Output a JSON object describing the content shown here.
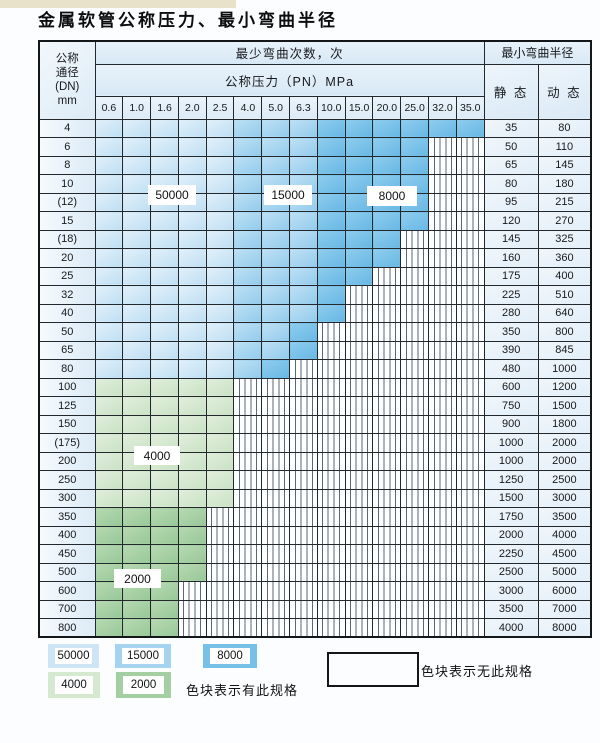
{
  "page": {
    "title": "金属软管公称压力、最小弯曲半径"
  },
  "table": {
    "dn_header_lines": [
      "公称",
      "通径",
      "(DN)",
      "mm"
    ],
    "cycles_header": "最少弯曲次数，次",
    "pressure_header": "公称压力（PN）MPa",
    "radius_header": "最小弯曲半径",
    "static_header": "静 态",
    "dynamic_header": "动 态",
    "pressure_columns": [
      "0.6",
      "1.0",
      "1.6",
      "2.0",
      "2.5",
      "4.0",
      "5.0",
      "6.3",
      "10.0",
      "15.0",
      "20.0",
      "25.0",
      "32.0",
      "35.0"
    ],
    "rows": [
      {
        "dn": "4",
        "static": "35",
        "dynamic": "80",
        "fill": "blue",
        "light_end": 4,
        "mid_end": 7,
        "end": 13
      },
      {
        "dn": "6",
        "static": "50",
        "dynamic": "110",
        "fill": "blue",
        "light_end": 4,
        "mid_end": 7,
        "end": 11
      },
      {
        "dn": "8",
        "static": "65",
        "dynamic": "145",
        "fill": "blue",
        "light_end": 4,
        "mid_end": 7,
        "end": 11
      },
      {
        "dn": "10",
        "static": "80",
        "dynamic": "180",
        "fill": "blue",
        "light_end": 4,
        "mid_end": 7,
        "end": 11
      },
      {
        "dn": "(12)",
        "static": "95",
        "dynamic": "215",
        "fill": "blue",
        "light_end": 4,
        "mid_end": 7,
        "end": 11
      },
      {
        "dn": "15",
        "static": "120",
        "dynamic": "270",
        "fill": "blue",
        "light_end": 4,
        "mid_end": 7,
        "end": 11
      },
      {
        "dn": "(18)",
        "static": "145",
        "dynamic": "325",
        "fill": "blue",
        "light_end": 4,
        "mid_end": 7,
        "end": 10
      },
      {
        "dn": "20",
        "static": "160",
        "dynamic": "360",
        "fill": "blue",
        "light_end": 4,
        "mid_end": 7,
        "end": 10
      },
      {
        "dn": "25",
        "static": "175",
        "dynamic": "400",
        "fill": "blue",
        "light_end": 4,
        "mid_end": 7,
        "end": 9
      },
      {
        "dn": "32",
        "static": "225",
        "dynamic": "510",
        "fill": "blue",
        "light_end": 4,
        "mid_end": 7,
        "end": 8
      },
      {
        "dn": "40",
        "static": "280",
        "dynamic": "640",
        "fill": "blue",
        "light_end": 4,
        "mid_end": 7,
        "end": 8
      },
      {
        "dn": "50",
        "static": "350",
        "dynamic": "800",
        "fill": "blue",
        "light_end": 4,
        "mid_end": 6,
        "end": 7
      },
      {
        "dn": "65",
        "static": "390",
        "dynamic": "845",
        "fill": "blue",
        "light_end": 4,
        "mid_end": 6,
        "end": 7
      },
      {
        "dn": "80",
        "static": "480",
        "dynamic": "1000",
        "fill": "blue",
        "light_end": 4,
        "mid_end": 5,
        "end": 6
      },
      {
        "dn": "100",
        "static": "600",
        "dynamic": "1200",
        "fill": "green4000",
        "end": 4
      },
      {
        "dn": "125",
        "static": "750",
        "dynamic": "1500",
        "fill": "green4000",
        "end": 4
      },
      {
        "dn": "150",
        "static": "900",
        "dynamic": "1800",
        "fill": "green4000",
        "end": 4
      },
      {
        "dn": "(175)",
        "static": "1000",
        "dynamic": "2000",
        "fill": "green4000",
        "end": 4
      },
      {
        "dn": "200",
        "static": "1000",
        "dynamic": "2000",
        "fill": "green4000",
        "end": 4
      },
      {
        "dn": "250",
        "static": "1250",
        "dynamic": "2500",
        "fill": "green4000",
        "end": 4
      },
      {
        "dn": "300",
        "static": "1500",
        "dynamic": "3000",
        "fill": "green4000",
        "end": 4
      },
      {
        "dn": "350",
        "static": "1750",
        "dynamic": "3500",
        "fill": "green2000",
        "end": 3
      },
      {
        "dn": "400",
        "static": "2000",
        "dynamic": "4000",
        "fill": "green2000",
        "end": 3
      },
      {
        "dn": "450",
        "static": "2250",
        "dynamic": "4500",
        "fill": "green2000",
        "end": 3
      },
      {
        "dn": "500",
        "static": "2500",
        "dynamic": "5000",
        "fill": "green2000",
        "end": 3
      },
      {
        "dn": "600",
        "static": "3000",
        "dynamic": "6000",
        "fill": "green2000",
        "end": 2
      },
      {
        "dn": "700",
        "static": "3500",
        "dynamic": "7000",
        "fill": "green2000",
        "end": 2
      },
      {
        "dn": "800",
        "static": "4000",
        "dynamic": "8000",
        "fill": "green2000",
        "end": 2
      }
    ]
  },
  "overlays": {
    "l50000": "50000",
    "l15000": "15000",
    "l8000": "8000",
    "l4000": "4000",
    "l2000": "2000"
  },
  "legend": {
    "l50000": "50000",
    "l15000": "15000",
    "l8000": "8000",
    "l4000": "4000",
    "l2000": "2000",
    "has_spec_note": "色块表示有此规格",
    "no_spec_note": "色块表示无此规格"
  },
  "colors": {
    "cycle_50000": "#cde5f5",
    "cycle_15000": "#a6d4f0",
    "cycle_8000": "#77c0e7",
    "cycle_4000": "#d5e8d0",
    "cycle_2000": "#a3cfa3"
  }
}
